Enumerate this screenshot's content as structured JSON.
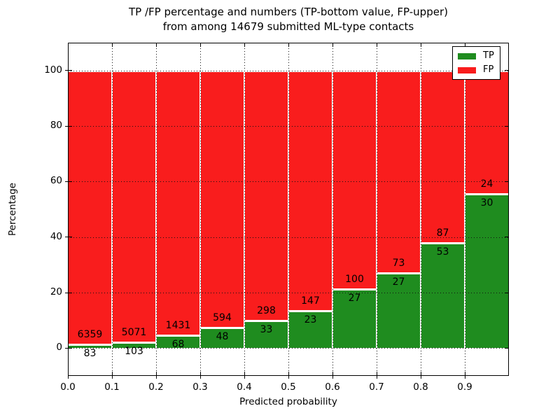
{
  "figure": {
    "title_line1": "TP /FP percentage and numbers (TP-bottom value, FP-upper)",
    "title_line2": "from among 14679 submitted ML-type contacts",
    "xlabel": "Predicted probability",
    "ylabel": "Percentage"
  },
  "legend": {
    "items": [
      {
        "label": "TP",
        "color": "#1f8c1f"
      },
      {
        "label": "FP",
        "color": "#f91d1d"
      }
    ]
  },
  "chart_data": {
    "type": "bar",
    "stacked": true,
    "title": "TP /FP percentage and numbers (TP-bottom value, FP-upper) from among 14679 submitted ML-type contacts",
    "xlabel": "Predicted probability",
    "ylabel": "Percentage",
    "total_submitted_contacts": 14679,
    "bins": [
      "0.0-0.1",
      "0.1-0.2",
      "0.2-0.3",
      "0.3-0.4",
      "0.4-0.5",
      "0.5-0.6",
      "0.6-0.7",
      "0.7-0.8",
      "0.8-0.9",
      "0.9-1.0"
    ],
    "x_tick_labels": [
      "0.0",
      "0.1",
      "0.2",
      "0.3",
      "0.4",
      "0.5",
      "0.6",
      "0.7",
      "0.8",
      "0.9"
    ],
    "y_tick_labels": [
      "0",
      "20",
      "40",
      "60",
      "80",
      "100"
    ],
    "y_ticks": [
      0,
      20,
      40,
      60,
      80,
      100
    ],
    "xlim": [
      0,
      1
    ],
    "ylim": [
      -10,
      110
    ],
    "grid": true,
    "legend_position": "upper right",
    "series": [
      {
        "name": "TP",
        "color": "#1f8c1f",
        "counts": [
          83,
          103,
          68,
          48,
          33,
          23,
          27,
          27,
          53,
          30
        ]
      },
      {
        "name": "FP",
        "color": "#f91d1d",
        "counts": [
          6359,
          5071,
          1431,
          594,
          298,
          147,
          100,
          73,
          87,
          24
        ]
      }
    ],
    "tp_percent": [
      1.29,
      1.99,
      4.54,
      7.48,
      9.97,
      13.53,
      21.26,
      27.0,
      37.86,
      55.56
    ],
    "edge_color": "#ffffff"
  }
}
